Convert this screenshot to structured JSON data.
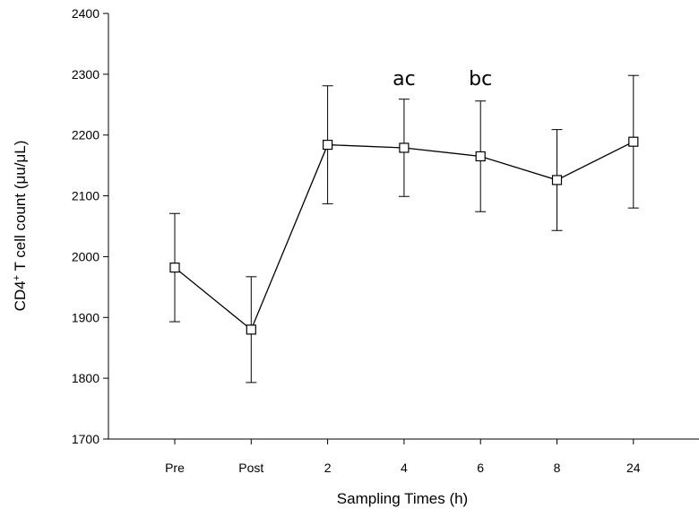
{
  "chart_data": {
    "type": "line",
    "title": "",
    "xlabel": "Sampling Times (h)",
    "ylabel_parts": [
      "CD4",
      "+",
      " T cell count (μu/μL)"
    ],
    "categories": [
      "Pre",
      "Post",
      "2",
      "4",
      "6",
      "8",
      "24"
    ],
    "ylim": [
      1700,
      2400
    ],
    "yticks": [
      1700,
      1800,
      1900,
      2000,
      2100,
      2200,
      2300,
      2400
    ],
    "series": [
      {
        "values": [
          1982,
          1880,
          2184,
          2179,
          2165,
          2126,
          2189
        ],
        "error": [
          89,
          87,
          97,
          80,
          91,
          83,
          109
        ],
        "marker": "open-square",
        "color": "#000000"
      }
    ],
    "annotations": [
      {
        "category": "4",
        "text": "ac",
        "y": 2282
      },
      {
        "category": "6",
        "text": "bc",
        "y": 2282
      }
    ],
    "grid": false,
    "legend": "none"
  }
}
